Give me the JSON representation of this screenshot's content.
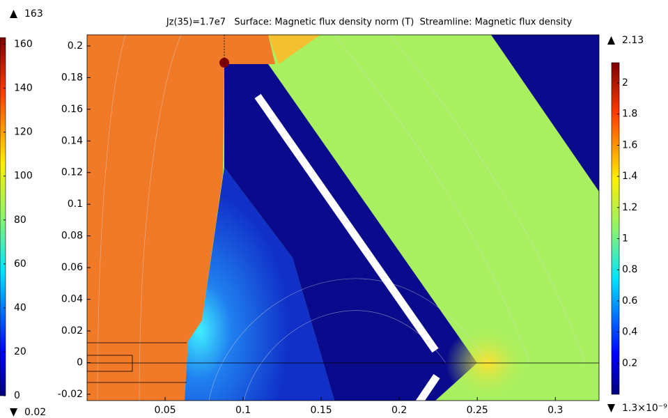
{
  "chart_data": {
    "type": "surface",
    "title": "Jz(35)=1.7e7   Surface: Magnetic flux density norm (T)  Streamline: Magnetic flux density",
    "xlim": [
      0,
      0.328
    ],
    "xticks": [
      0.05,
      0.1,
      0.15,
      0.2,
      0.25,
      0.3
    ],
    "ylim": [
      -0.024,
      0.207
    ],
    "yticks": [
      -0.02,
      0,
      0.02,
      0.04,
      0.06,
      0.08,
      0.1,
      0.12,
      0.14,
      0.16,
      0.18,
      0.2
    ],
    "colorbars": [
      {
        "min": 0.02,
        "max": 163,
        "ticks": [
          0,
          20,
          40,
          60,
          80,
          100,
          120,
          140,
          160
        ]
      },
      {
        "min": {
          "value": 1.3e-09,
          "label": "1.3×10⁻⁹"
        },
        "max": 2.13,
        "ticks": [
          0.2,
          0.4,
          0.6,
          0.8,
          1,
          1.2,
          1.4,
          1.6,
          1.8,
          2
        ]
      }
    ]
  }
}
